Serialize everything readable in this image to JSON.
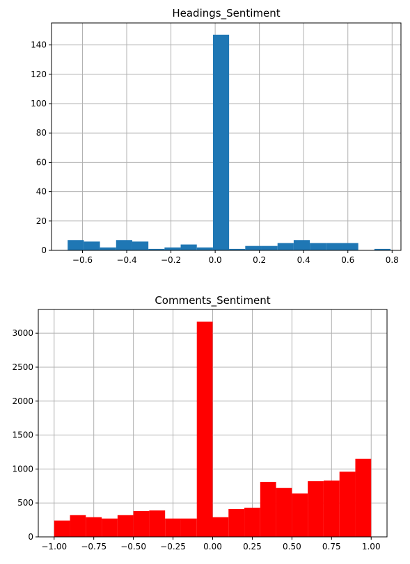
{
  "chart_data": [
    {
      "type": "bar",
      "title": "Headings_Sentiment",
      "xlabel": "",
      "ylabel": "",
      "color": "#1f77b4",
      "grid": true,
      "xlim": [
        -0.74,
        0.84
      ],
      "ylim": [
        0,
        155
      ],
      "xticks": [
        -0.6,
        -0.4,
        -0.2,
        0.0,
        0.2,
        0.4,
        0.6,
        0.8
      ],
      "xtick_labels": [
        "−0.6",
        "−0.4",
        "−0.2",
        "0.0",
        "0.2",
        "0.4",
        "0.6",
        "0.8"
      ],
      "yticks": [
        0,
        20,
        40,
        60,
        80,
        100,
        120,
        140
      ],
      "ytick_labels": [
        "0",
        "20",
        "40",
        "60",
        "80",
        "100",
        "120",
        "140"
      ],
      "bin_edges": [
        -0.667,
        -0.594,
        -0.521,
        -0.448,
        -0.375,
        -0.302,
        -0.229,
        -0.156,
        -0.083,
        -0.01,
        0.063,
        0.136,
        0.209,
        0.282,
        0.355,
        0.428,
        0.501,
        0.574,
        0.647,
        0.72,
        0.793
      ],
      "values": [
        7,
        6,
        2,
        7,
        6,
        1,
        2,
        4,
        2,
        147,
        1,
        3,
        3,
        5,
        7,
        5,
        5,
        5,
        0,
        1
      ]
    },
    {
      "type": "bar",
      "title": "Comments_Sentiment",
      "xlabel": "",
      "ylabel": "",
      "color": "#ff0000",
      "grid": true,
      "xlim": [
        -1.1,
        1.1
      ],
      "ylim": [
        0,
        3350
      ],
      "xticks": [
        -1.0,
        -0.75,
        -0.5,
        -0.25,
        0.0,
        0.25,
        0.5,
        0.75,
        1.0
      ],
      "xtick_labels": [
        "−1.00",
        "−0.75",
        "−0.50",
        "−0.25",
        "0.00",
        "0.25",
        "0.50",
        "0.75",
        "1.00"
      ],
      "yticks": [
        0,
        500,
        1000,
        1500,
        2000,
        2500,
        3000
      ],
      "ytick_labels": [
        "0",
        "500",
        "1000",
        "1500",
        "2000",
        "2500",
        "3000"
      ],
      "bin_edges": [
        -1.0,
        -0.9,
        -0.8,
        -0.7,
        -0.6,
        -0.5,
        -0.4,
        -0.3,
        -0.2,
        -0.1,
        0.0,
        0.1,
        0.2,
        0.3,
        0.4,
        0.5,
        0.6,
        0.7,
        0.8,
        0.9,
        1.0
      ],
      "values": [
        240,
        320,
        290,
        270,
        320,
        380,
        390,
        270,
        270,
        3170,
        290,
        410,
        430,
        810,
        720,
        640,
        820,
        830,
        960,
        1150
      ]
    }
  ]
}
